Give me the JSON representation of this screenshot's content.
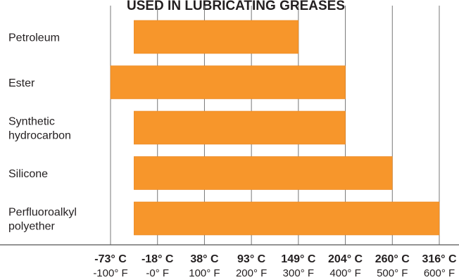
{
  "chart_data": {
    "type": "bar",
    "orientation": "horizontal",
    "title": "USED IN LUBRICATING GREASES",
    "categories": [
      [
        "Petroleum"
      ],
      [
        "Ester"
      ],
      [
        "Synthetic",
        "hydrocarbon"
      ],
      [
        "Silicone"
      ],
      [
        "Perfluoroalkyl",
        "polyether"
      ]
    ],
    "ranges_f": [
      [
        -50,
        300
      ],
      [
        -100,
        400
      ],
      [
        -50,
        400
      ],
      [
        -50,
        500
      ],
      [
        -50,
        600
      ]
    ],
    "x_ticks_f": [
      -100,
      0,
      100,
      200,
      300,
      400,
      500,
      600
    ],
    "tick_labels_c": [
      "-73° C",
      "-18° C",
      "38° C",
      "93° C",
      "149° C",
      "204° C",
      "260° C",
      "316° C"
    ],
    "tick_labels_f": [
      "-100° F",
      "-0° F",
      "100° F",
      "200° F",
      "300° F",
      "400° F",
      "500° F",
      "600° F"
    ],
    "xlim": [
      -100,
      600
    ],
    "grid": true,
    "colors": {
      "bar": "#f7962b",
      "grid": "#777777",
      "text": "#231f20"
    }
  }
}
